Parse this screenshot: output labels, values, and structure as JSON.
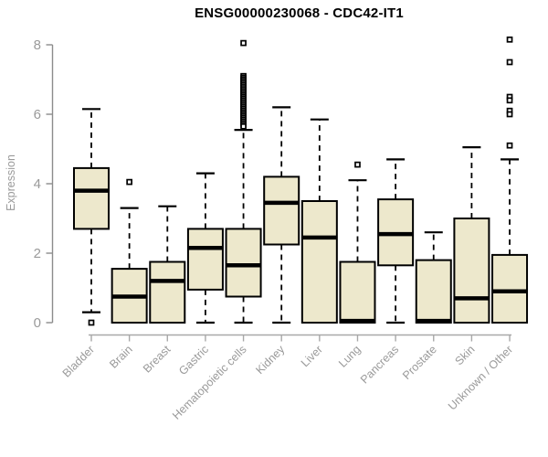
{
  "title": "ENSG00000230068 - CDC42-IT1",
  "ylabel": "Expression",
  "colors": {
    "background": "#FFFFFF",
    "box_fill": "#EDE8CC",
    "box_border": "#000000",
    "median": "#000000",
    "whisker": "#000000",
    "outlier": "#000000",
    "y_axis": "#8C8C8C",
    "x_axis": "#A8A8A8",
    "tick_text": "#9A9A9A",
    "title_text": "#000000"
  },
  "chart_data": {
    "type": "boxplot",
    "title": "ENSG00000230068 - CDC42-IT1",
    "xlabel": "",
    "ylabel": "Expression",
    "ylim": [
      0,
      8
    ],
    "yticks": [
      0,
      2,
      4,
      6,
      8
    ],
    "grid": false,
    "legend": "none",
    "whisker_style": "dashed",
    "categories": [
      "Bladder",
      "Brain",
      "Breast",
      "Gastric",
      "Hematopoietic cells",
      "Kidney",
      "Liver",
      "Lung",
      "Pancreas",
      "Prostate",
      "Skin",
      "Unknown / Other"
    ],
    "series": [
      {
        "name": "Bladder",
        "whisker_low": 0.3,
        "q1": 2.7,
        "median": 3.8,
        "q3": 4.45,
        "whisker_high": 6.15,
        "outliers": [
          0
        ]
      },
      {
        "name": "Brain",
        "whisker_low": 0,
        "q1": 0,
        "median": 0.75,
        "q3": 1.55,
        "whisker_high": 3.3,
        "outliers": [
          4.05
        ]
      },
      {
        "name": "Breast",
        "whisker_low": 0,
        "q1": 0,
        "median": 1.2,
        "q3": 1.75,
        "whisker_high": 3.35,
        "outliers": []
      },
      {
        "name": "Gastric",
        "whisker_low": 0,
        "q1": 0.95,
        "median": 2.15,
        "q3": 2.7,
        "whisker_high": 4.3,
        "outliers": []
      },
      {
        "name": "Hematopoietic cells",
        "whisker_low": 0,
        "q1": 0.75,
        "median": 1.65,
        "q3": 2.7,
        "whisker_high": 5.55,
        "outliers": [
          8.05,
          7.1,
          7.05,
          7.0,
          6.95,
          6.9,
          6.85,
          6.8,
          6.75,
          6.7,
          6.65,
          6.6,
          6.55,
          6.5,
          6.45,
          6.4,
          6.35,
          6.3,
          6.25,
          6.2,
          6.15,
          6.1,
          6.05,
          6.0,
          5.95,
          5.9,
          5.85,
          5.8,
          5.75,
          5.7,
          5.65
        ]
      },
      {
        "name": "Kidney",
        "whisker_low": 0,
        "q1": 2.25,
        "median": 3.45,
        "q3": 4.2,
        "whisker_high": 6.2,
        "outliers": []
      },
      {
        "name": "Liver",
        "whisker_low": 0,
        "q1": 0,
        "median": 2.45,
        "q3": 3.5,
        "whisker_high": 5.85,
        "outliers": []
      },
      {
        "name": "Lung",
        "whisker_low": 0,
        "q1": 0,
        "median": 0.05,
        "q3": 1.75,
        "whisker_high": 4.1,
        "outliers": [
          4.55
        ]
      },
      {
        "name": "Pancreas",
        "whisker_low": 0,
        "q1": 1.65,
        "median": 2.55,
        "q3": 3.55,
        "whisker_high": 4.7,
        "outliers": []
      },
      {
        "name": "Prostate",
        "whisker_low": 0,
        "q1": 0,
        "median": 0.05,
        "q3": 1.8,
        "whisker_high": 2.6,
        "outliers": []
      },
      {
        "name": "Skin",
        "whisker_low": 0,
        "q1": 0,
        "median": 0.7,
        "q3": 3.0,
        "whisker_high": 5.05,
        "outliers": []
      },
      {
        "name": "Unknown / Other",
        "whisker_low": 0,
        "q1": 0,
        "median": 0.9,
        "q3": 1.95,
        "whisker_high": 4.7,
        "outliers": [
          8.15,
          7.5,
          6.5,
          6.4,
          6.1,
          6.0,
          5.1
        ]
      }
    ]
  }
}
